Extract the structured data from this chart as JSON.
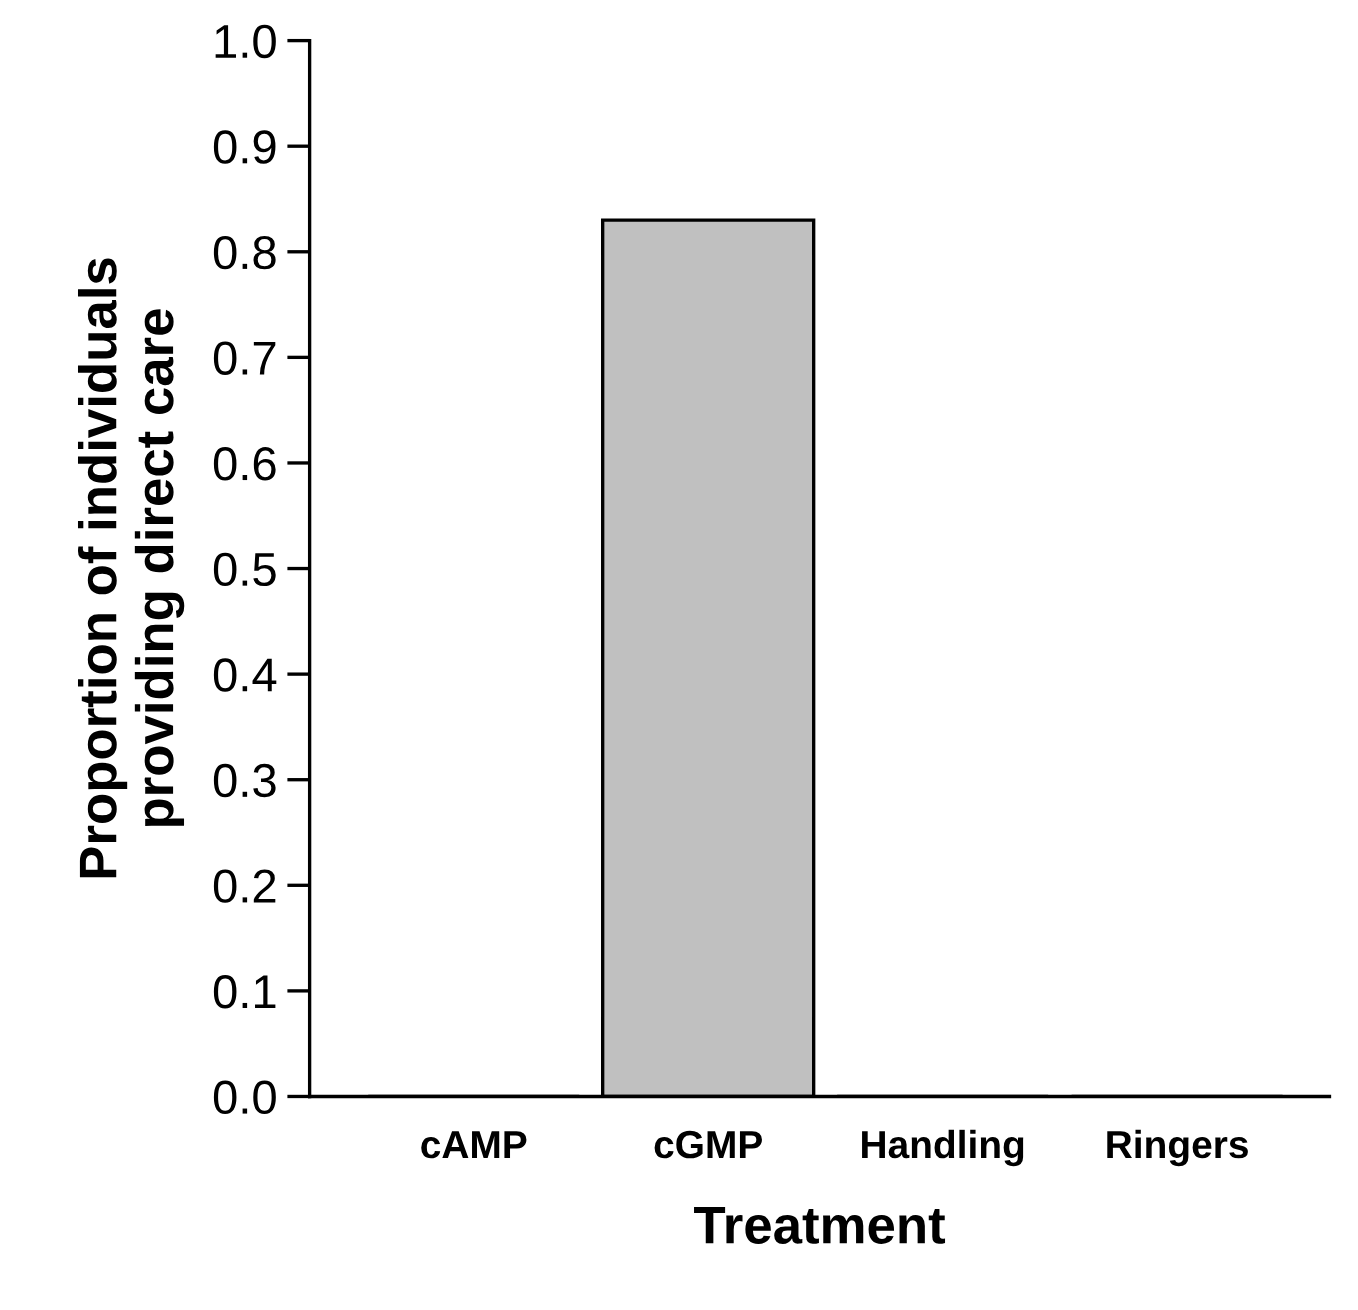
{
  "chart_data": {
    "type": "bar",
    "xlabel": "Treatment",
    "ylabel": "Proportion of individuals\nproviding direct care",
    "categories": [
      "cAMP",
      "cGMP",
      "Handling",
      "Ringers"
    ],
    "values": [
      0,
      0.83,
      0,
      0
    ],
    "color": "#c0c0c0",
    "ylim": [
      0.0,
      1.0
    ],
    "yticks": [
      {
        "value": 0,
        "label": "0.0"
      },
      0.1,
      0.2,
      0.3,
      0.4,
      0.5,
      0.6,
      0.7,
      0.8,
      0.9,
      {
        "value": 1,
        "label": "1.0"
      }
    ],
    "grid": false
  }
}
